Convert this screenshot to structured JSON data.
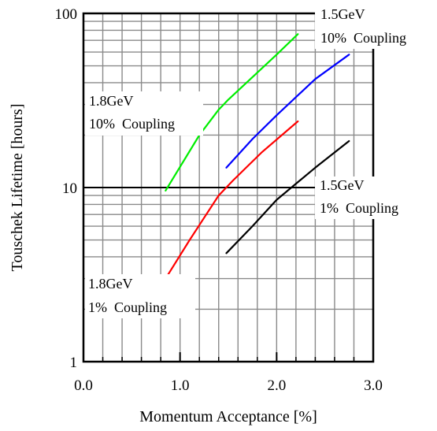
{
  "chart_data": {
    "type": "line",
    "title": "",
    "xlabel": "Momentum Acceptance [%]",
    "ylabel": "Touschek Lifetime [hours]",
    "xlim": [
      0.0,
      3.0
    ],
    "ylim": [
      1,
      100
    ],
    "yscale": "log",
    "grid": true,
    "x_ticks": [
      {
        "value": 0.0,
        "label": "0.0"
      },
      {
        "value": 1.0,
        "label": "1.0"
      },
      {
        "value": 2.0,
        "label": "2.0"
      },
      {
        "value": 3.0,
        "label": "3.0"
      }
    ],
    "y_ticks": [
      {
        "value": 1,
        "label": "1"
      },
      {
        "value": 10,
        "label": "10"
      },
      {
        "value": 100,
        "label": "100"
      }
    ],
    "series": [
      {
        "color": "#00ee00",
        "x": [
          0.85,
          1.2,
          1.4,
          1.5,
          2.0,
          2.22
        ],
        "y": [
          9.6,
          20,
          28,
          32,
          58,
          76
        ]
      },
      {
        "color": "#0000ff",
        "x": [
          1.48,
          1.75,
          2.0,
          2.4,
          2.75
        ],
        "y": [
          13,
          19,
          26,
          42,
          58
        ]
      },
      {
        "color": "#ff0000",
        "x": [
          0.85,
          1.1,
          1.4,
          1.55,
          1.85,
          2.22
        ],
        "y": [
          3.0,
          5.0,
          9.0,
          11,
          16,
          24
        ]
      },
      {
        "color": "#000000",
        "x": [
          1.48,
          1.75,
          2.0,
          2.4,
          2.75
        ],
        "y": [
          4.2,
          6.0,
          8.5,
          13,
          18.5
        ]
      }
    ],
    "annotations": [
      {
        "id": "a1",
        "lines": [
          "1.5GeV",
          "10%  Coupling"
        ]
      },
      {
        "id": "a2",
        "lines": [
          "1.8GeV",
          "10%  Coupling"
        ]
      },
      {
        "id": "a3",
        "lines": [
          "1.5GeV",
          "1%  Coupling"
        ]
      },
      {
        "id": "a4",
        "lines": [
          "1.8GeV",
          "1%  Coupling"
        ]
      }
    ]
  }
}
